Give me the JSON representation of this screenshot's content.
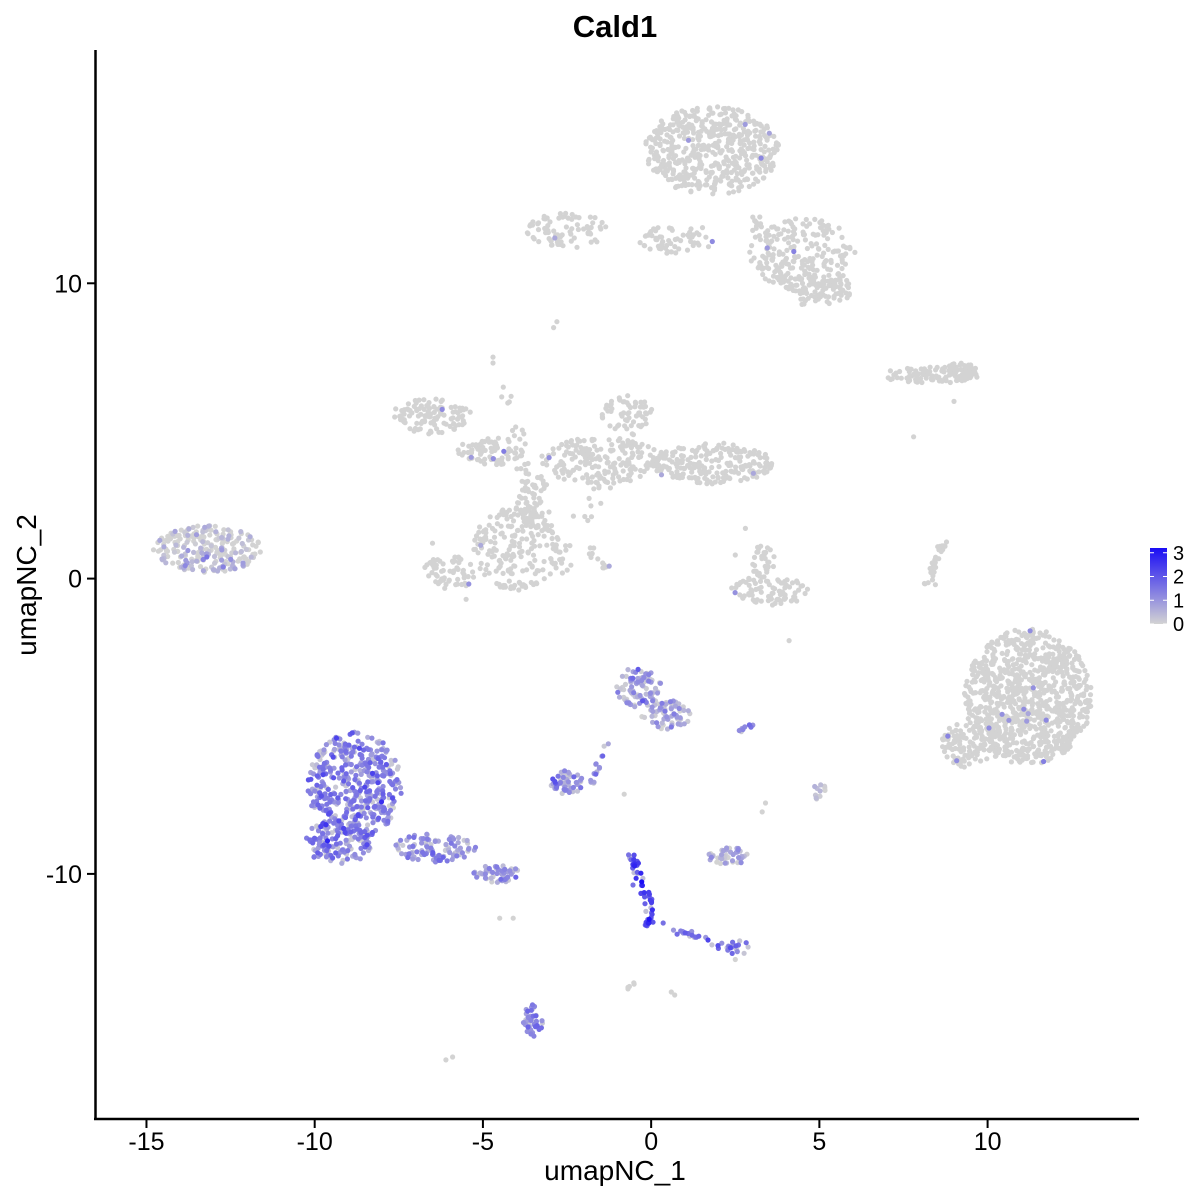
{
  "chart_data": {
    "type": "scatter",
    "title": "Cald1",
    "xlabel": "umapNC_1",
    "ylabel": "umapNC_2",
    "xlim": [
      -16.5,
      14.5
    ],
    "ylim": [
      -18.3,
      17.9
    ],
    "x_ticks": [
      -15,
      -10,
      -5,
      0,
      5,
      10
    ],
    "x_tick_labels": [
      "-15",
      "-10",
      "-5",
      "0",
      "5",
      "10"
    ],
    "y_ticks": [
      -10,
      0,
      10
    ],
    "y_tick_labels": [
      "-10",
      "0",
      "10"
    ],
    "color_scale": {
      "low": "#d3d3d3",
      "high": "#1a0df5",
      "min": 0,
      "max": 3.2
    },
    "legend": {
      "title": "",
      "placement": "right",
      "labels": [
        "3",
        "2",
        "1",
        "0"
      ],
      "values": [
        3,
        2,
        1,
        0
      ]
    },
    "grid": false,
    "clusters": [
      {
        "cx": 1.8,
        "cy": 14.5,
        "rx": 2.0,
        "ry": 1.5,
        "n": 520,
        "expr_mean": 0.0
      },
      {
        "cx": 4.5,
        "cy": 11.0,
        "rx": 1.6,
        "ry": 1.2,
        "n": 200,
        "expr_mean": 0.0
      },
      {
        "cx": 5.2,
        "cy": 9.8,
        "rx": 0.8,
        "ry": 0.5,
        "n": 80,
        "expr_mean": 0.0
      },
      {
        "cx": -2.5,
        "cy": 11.8,
        "rx": 1.2,
        "ry": 0.6,
        "n": 80,
        "expr_mean": 0.0
      },
      {
        "cx": 0.8,
        "cy": 11.5,
        "rx": 1.2,
        "ry": 0.5,
        "n": 60,
        "expr_mean": 0.0
      },
      {
        "cx": -6.5,
        "cy": 5.5,
        "rx": 1.2,
        "ry": 0.6,
        "n": 110,
        "expr_mean": 0.0
      },
      {
        "cx": -4.8,
        "cy": 4.3,
        "rx": 1.0,
        "ry": 0.5,
        "n": 80,
        "expr_mean": 0.0
      },
      {
        "cx": -4.0,
        "cy": 1.0,
        "rx": 1.3,
        "ry": 1.4,
        "n": 200,
        "expr_mean": 0.0
      },
      {
        "cx": -6.0,
        "cy": 0.2,
        "rx": 0.8,
        "ry": 0.6,
        "n": 60,
        "expr_mean": 0.0
      },
      {
        "cx": -1.5,
        "cy": 4.0,
        "rx": 1.8,
        "ry": 0.8,
        "n": 180,
        "expr_mean": 0.0
      },
      {
        "cx": 1.8,
        "cy": 3.9,
        "rx": 1.8,
        "ry": 0.7,
        "n": 220,
        "expr_mean": 0.0
      },
      {
        "cx": -0.7,
        "cy": 5.6,
        "rx": 0.8,
        "ry": 0.6,
        "n": 60,
        "expr_mean": 0.0
      },
      {
        "cx": -3.5,
        "cy": 2.6,
        "rx": 0.5,
        "ry": 1.0,
        "n": 50,
        "expr_mean": 0.0
      },
      {
        "cx": -13.2,
        "cy": 1.0,
        "rx": 1.6,
        "ry": 0.8,
        "n": 240,
        "expr_mean": 0.1
      },
      {
        "cx": 3.5,
        "cy": -0.4,
        "rx": 1.2,
        "ry": 0.5,
        "n": 90,
        "expr_mean": 0.0
      },
      {
        "cx": 3.3,
        "cy": 0.6,
        "rx": 0.4,
        "ry": 0.5,
        "n": 30,
        "expr_mean": 0.0
      },
      {
        "cx": 8.3,
        "cy": 6.9,
        "rx": 1.4,
        "ry": 0.3,
        "n": 80,
        "expr_mean": 0.0
      },
      {
        "cx": 9.2,
        "cy": 7.0,
        "rx": 0.6,
        "ry": 0.3,
        "n": 50,
        "expr_mean": 0.0
      },
      {
        "cx": 11.2,
        "cy": -4.0,
        "rx": 1.9,
        "ry": 2.3,
        "n": 900,
        "expr_mean": 0.0
      },
      {
        "cx": 9.5,
        "cy": -5.6,
        "rx": 0.9,
        "ry": 0.8,
        "n": 120,
        "expr_mean": 0.0
      },
      {
        "cx": -8.8,
        "cy": -7.0,
        "rx": 1.4,
        "ry": 1.8,
        "n": 430,
        "expr_mean": 1.3
      },
      {
        "cx": -9.3,
        "cy": -8.9,
        "rx": 1.0,
        "ry": 0.8,
        "n": 150,
        "expr_mean": 1.2
      },
      {
        "cx": -6.4,
        "cy": -9.1,
        "rx": 1.2,
        "ry": 0.5,
        "n": 100,
        "expr_mean": 1.0
      },
      {
        "cx": -4.6,
        "cy": -10.0,
        "rx": 0.7,
        "ry": 0.3,
        "n": 50,
        "expr_mean": 1.0
      },
      {
        "cx": -0.4,
        "cy": -3.7,
        "rx": 0.7,
        "ry": 0.7,
        "n": 90,
        "expr_mean": 0.8
      },
      {
        "cx": 0.5,
        "cy": -4.6,
        "rx": 0.8,
        "ry": 0.5,
        "n": 70,
        "expr_mean": 0.6
      },
      {
        "cx": -2.5,
        "cy": -6.9,
        "rx": 0.5,
        "ry": 0.4,
        "n": 50,
        "expr_mean": 1.0
      },
      {
        "cx": -3.5,
        "cy": -15.0,
        "rx": 0.3,
        "ry": 0.6,
        "n": 40,
        "expr_mean": 1.3
      },
      {
        "cx": 2.3,
        "cy": -9.4,
        "rx": 0.6,
        "ry": 0.3,
        "n": 45,
        "expr_mean": 0.5
      },
      {
        "cx": 5.0,
        "cy": -7.2,
        "rx": 0.2,
        "ry": 0.3,
        "n": 12,
        "expr_mean": 0.5
      },
      {
        "cx": 2.6,
        "cy": -12.5,
        "rx": 0.4,
        "ry": 0.25,
        "n": 15,
        "expr_mean": 1.5
      }
    ],
    "paths": [
      {
        "points": [
          [
            -0.1,
            -11.7
          ],
          [
            0.0,
            -11.3
          ],
          [
            -0.3,
            -10.4
          ],
          [
            -0.6,
            -9.3
          ]
        ],
        "n": 60,
        "expr_mean": 2.2,
        "jitter": 0.15
      },
      {
        "points": [
          [
            0.3,
            -11.7
          ],
          [
            1.5,
            -12.2
          ],
          [
            2.5,
            -12.6
          ]
        ],
        "n": 25,
        "expr_mean": 1.6,
        "jitter": 0.12
      },
      {
        "points": [
          [
            -1.8,
            -7.0
          ],
          [
            -1.3,
            -5.5
          ]
        ],
        "n": 15,
        "expr_mean": 1.0,
        "jitter": 0.1
      },
      {
        "points": [
          [
            2.6,
            -5.2
          ],
          [
            3.0,
            -4.9
          ]
        ],
        "n": 8,
        "expr_mean": 1.3,
        "jitter": 0.08
      },
      {
        "points": [
          [
            8.2,
            -0.2
          ],
          [
            8.7,
            1.3
          ]
        ],
        "n": 30,
        "expr_mean": 0.0,
        "jitter": 0.12
      },
      {
        "points": [
          [
            -2.0,
            1.2
          ],
          [
            -1.3,
            0.3
          ]
        ],
        "n": 14,
        "expr_mean": 0.0,
        "jitter": 0.1
      },
      {
        "points": [
          [
            -3.5,
            2.0
          ],
          [
            -3.8,
            4.0
          ],
          [
            -4.3,
            6.5
          ]
        ],
        "n": 40,
        "expr_mean": 0.0,
        "jitter": 0.25
      },
      {
        "points": [
          [
            -2.8,
            0.2
          ],
          [
            -1.8,
            2.6
          ],
          [
            -0.5,
            4.8
          ]
        ],
        "n": 40,
        "expr_mean": 0.0,
        "jitter": 0.25
      },
      {
        "points": [
          [
            3.0,
            12.5
          ],
          [
            3.7,
            10.5
          ],
          [
            4.6,
            9.3
          ]
        ],
        "n": 40,
        "expr_mean": 0.0,
        "jitter": 0.2
      },
      {
        "points": [
          [
            -0.7,
            -13.9
          ],
          [
            -0.5,
            -13.7
          ]
        ],
        "n": 5,
        "expr_mean": 0.0,
        "jitter": 0.05
      }
    ],
    "singletons": [
      [
        -2.8,
        8.7
      ],
      [
        -2.9,
        8.5
      ],
      [
        -4.7,
        7.5
      ],
      [
        -4.7,
        7.3
      ],
      [
        -6.1,
        -16.3
      ],
      [
        -5.9,
        -16.2
      ],
      [
        -4.1,
        -11.5
      ],
      [
        -4.5,
        -11.5
      ],
      [
        -0.8,
        -7.3
      ],
      [
        3.3,
        -7.9
      ],
      [
        3.4,
        -7.6
      ],
      [
        4.1,
        -2.1
      ],
      [
        7.8,
        4.8
      ],
      [
        9.0,
        6.0
      ],
      [
        2.5,
        0.8
      ],
      [
        2.8,
        1.7
      ],
      [
        -5.5,
        -0.7
      ],
      [
        -6.5,
        1.2
      ],
      [
        0.7,
        -14.1
      ],
      [
        0.6,
        -14.0
      ],
      [
        2.5,
        -12.9
      ]
    ],
    "seed": 20240611
  }
}
